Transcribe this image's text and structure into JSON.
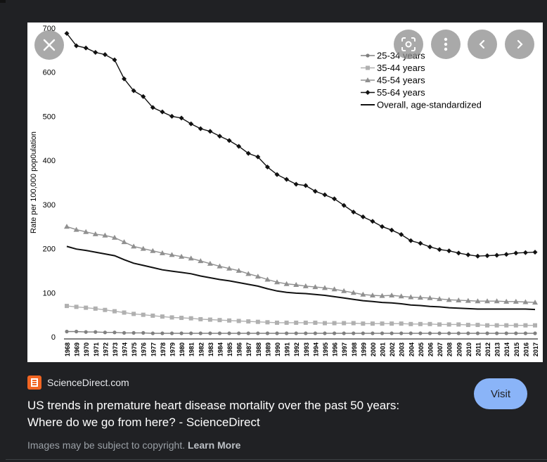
{
  "source": {
    "name": "ScienceDirect.com"
  },
  "result": {
    "title_line1": "US trends in premature heart disease mortality over the past 50 years:",
    "title_line2": "Where do we go from here? - ScienceDirect",
    "visit_label": "Visit"
  },
  "footer": {
    "copyright_text": "Images may be subject to copyright. ",
    "learn_more": "Learn More"
  },
  "overlay": {
    "close_icon": "close-icon",
    "lens_icon": "lens-icon",
    "more_icon": "more-vert-icon",
    "prev_icon": "chevron-left-icon",
    "next_icon": "chevron-right-icon"
  },
  "colors": {
    "background": "#202124",
    "visit": "#8ab4f8",
    "logo": "#f26522"
  },
  "chart_data": {
    "type": "line",
    "title": "",
    "xlabel": "",
    "ylabel": "Rate per 100,000 pop0ulation",
    "ylim": [
      0,
      700
    ],
    "yticks": [
      0,
      100,
      200,
      300,
      400,
      500,
      600,
      700
    ],
    "x": [
      1968,
      1969,
      1970,
      1971,
      1972,
      1973,
      1974,
      1975,
      1976,
      1977,
      1978,
      1979,
      1980,
      1981,
      1982,
      1983,
      1984,
      1985,
      1986,
      1987,
      1988,
      1989,
      1990,
      1991,
      1992,
      1993,
      1994,
      1995,
      1996,
      1997,
      1998,
      1999,
      2000,
      2001,
      2002,
      2003,
      2004,
      2005,
      2006,
      2007,
      2008,
      2009,
      2010,
      2011,
      2012,
      2013,
      2014,
      2015,
      2016,
      2017
    ],
    "legend_position": "top-right",
    "series": [
      {
        "name": "25-34 years",
        "marker": "circle",
        "color": "#808080",
        "values": [
          12,
          12,
          11,
          11,
          10,
          10,
          9,
          9,
          9,
          8,
          8,
          8,
          8,
          8,
          8,
          8,
          8,
          8,
          8,
          8,
          8,
          8,
          8,
          8,
          8,
          8,
          8,
          8,
          8,
          8,
          8,
          8,
          8,
          8,
          8,
          8,
          8,
          8,
          8,
          8,
          8,
          8,
          8,
          8,
          8,
          8,
          8,
          8,
          8,
          8
        ]
      },
      {
        "name": "35-44 years",
        "marker": "square",
        "color": "#b0b0b0",
        "values": [
          70,
          68,
          66,
          64,
          61,
          58,
          55,
          52,
          50,
          48,
          46,
          44,
          43,
          42,
          40,
          39,
          38,
          37,
          36,
          35,
          34,
          33,
          32,
          32,
          32,
          32,
          32,
          31,
          31,
          31,
          31,
          30,
          30,
          30,
          30,
          30,
          29,
          29,
          29,
          28,
          28,
          28,
          27,
          27,
          26,
          26,
          26,
          26,
          26,
          26
        ]
      },
      {
        "name": "45-54 years",
        "marker": "triangle",
        "color": "#909090",
        "values": [
          250,
          243,
          238,
          233,
          230,
          225,
          215,
          205,
          200,
          195,
          190,
          186,
          182,
          178,
          172,
          166,
          160,
          155,
          150,
          143,
          137,
          130,
          124,
          120,
          118,
          115,
          113,
          111,
          108,
          104,
          100,
          96,
          94,
          93,
          94,
          92,
          90,
          89,
          88,
          86,
          84,
          83,
          82,
          81,
          81,
          81,
          80,
          80,
          79,
          78
        ]
      },
      {
        "name": "55-64 years",
        "marker": "diamond",
        "color": "#111111",
        "values": [
          688,
          660,
          655,
          645,
          640,
          628,
          585,
          558,
          545,
          520,
          510,
          500,
          496,
          483,
          472,
          466,
          455,
          445,
          432,
          416,
          408,
          385,
          368,
          357,
          346,
          343,
          330,
          322,
          313,
          298,
          283,
          272,
          262,
          250,
          242,
          232,
          218,
          212,
          204,
          198,
          195,
          190,
          186,
          183,
          184,
          185,
          187,
          190,
          191,
          192
        ]
      },
      {
        "name": "Overall, age-standardized",
        "marker": "none",
        "color": "#111111",
        "values": [
          205,
          199,
          196,
          192,
          188,
          184,
          175,
          167,
          162,
          157,
          152,
          149,
          146,
          143,
          138,
          134,
          130,
          127,
          123,
          119,
          115,
          109,
          104,
          101,
          99,
          98,
          96,
          94,
          91,
          88,
          85,
          82,
          80,
          78,
          77,
          75,
          72,
          71,
          69,
          68,
          66,
          65,
          64,
          63,
          63,
          63,
          63,
          63,
          63,
          62
        ]
      }
    ]
  }
}
